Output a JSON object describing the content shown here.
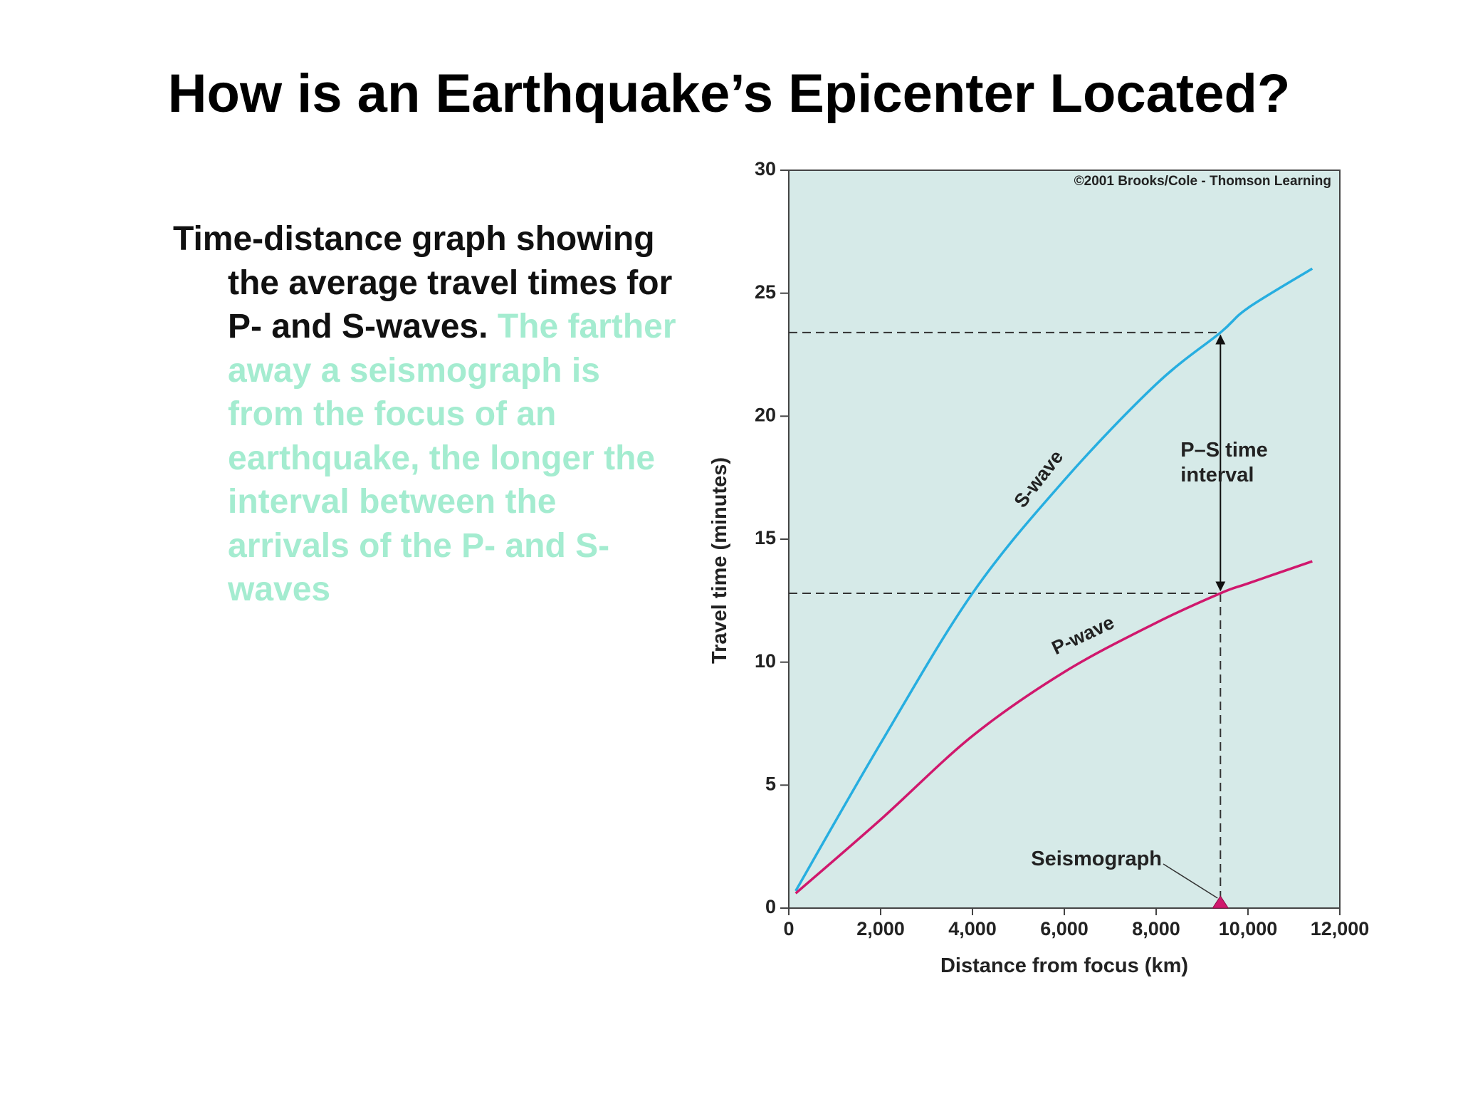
{
  "slide": {
    "title": "How is an Earthquake’s Epicenter Located?",
    "paragraph": {
      "lead": "Time-distance graph showing the average travel times for P- and S-waves.",
      "highlight": "The farther away a seismograph is from the focus of an earthquake, the longer the interval between the arrivals of the P- and S- waves"
    }
  },
  "chart_data": {
    "type": "line",
    "x_label": "Distance from focus (km)",
    "y_label": "Travel time (minutes)",
    "x": [
      150,
      2000,
      4000,
      6000,
      8000,
      9400,
      10000,
      11400
    ],
    "series": [
      {
        "name": "S-wave",
        "color": "#27aee0",
        "values": [
          0.7,
          6.7,
          12.8,
          17.4,
          21.3,
          23.4,
          24.4,
          26.0
        ]
      },
      {
        "name": "P-wave",
        "color": "#d0186d",
        "values": [
          0.6,
          3.6,
          7.0,
          9.6,
          11.6,
          12.8,
          13.2,
          14.1
        ]
      }
    ],
    "xlim": [
      0,
      12000
    ],
    "ylim": [
      0,
      30
    ],
    "xticks": [
      0,
      {
        "value": 2000,
        "label": "2,000"
      },
      {
        "value": 4000,
        "label": "4,000"
      },
      {
        "value": 6000,
        "label": "6,000"
      },
      {
        "value": 8000,
        "label": "8,000"
      },
      {
        "value": 10000,
        "label": "10,000"
      },
      {
        "value": 12000,
        "label": "12,000"
      }
    ],
    "yticks": [
      0,
      5,
      10,
      15,
      20,
      25,
      30
    ],
    "background": "#d6eae8",
    "annotations": {
      "copyright": "©2001 Brooks/Cole - Thomson Learning",
      "ps_interval": {
        "text": "P–S time interval",
        "x": 9400,
        "y_from": 12.8,
        "y_to": 23.4
      },
      "seismograph": {
        "text": "Seismograph",
        "x": 9400
      }
    }
  }
}
